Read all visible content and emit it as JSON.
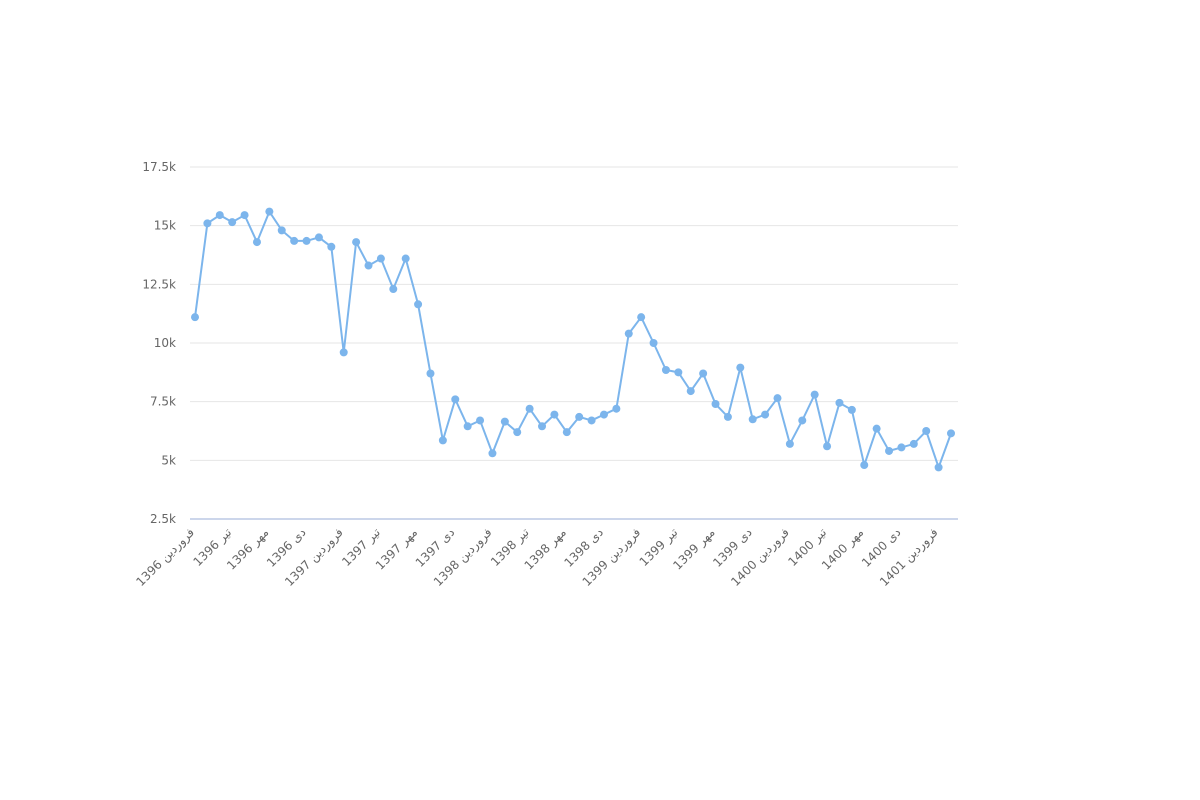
{
  "chart_data": {
    "type": "line",
    "categories": [
      "فروردین 1396",
      null,
      null,
      "تیر 1396",
      null,
      null,
      "مهر 1396",
      null,
      null,
      "دی 1396",
      null,
      null,
      "فروردین 1397",
      null,
      null,
      "تیر 1397",
      null,
      null,
      "مهر 1397",
      null,
      null,
      "دی 1397",
      null,
      null,
      "فروردین 1398",
      null,
      null,
      "تیر 1398",
      null,
      null,
      "مهر 1398",
      null,
      null,
      "دی 1398",
      null,
      null,
      "فروردین 1399",
      null,
      null,
      "تیر 1399",
      null,
      null,
      "مهر 1399",
      null,
      null,
      "دی 1399",
      null,
      null,
      "فروردین 1400",
      null,
      null,
      "تیر 1400",
      null,
      null,
      "مهر 1400",
      null,
      null,
      "دی 1400",
      null,
      null,
      "فروردین 1401",
      null
    ],
    "values": [
      11100,
      15100,
      15450,
      15150,
      15450,
      14300,
      15600,
      14800,
      14350,
      14350,
      14500,
      14100,
      9600,
      14300,
      13300,
      13600,
      12300,
      13600,
      11650,
      8700,
      5850,
      7600,
      6450,
      6700,
      5300,
      6650,
      6200,
      7200,
      6450,
      6950,
      6200,
      6850,
      6700,
      6950,
      7200,
      10400,
      11100,
      10000,
      8850,
      8750,
      7950,
      8700,
      7400,
      6850,
      8950,
      6750,
      6950,
      7650,
      5700,
      6700,
      7800,
      5600,
      7450,
      7150,
      4800,
      6350,
      5400,
      5550,
      5700,
      6250,
      4700,
      6150
    ],
    "color": "#7cb5ec",
    "ylim": [
      2500,
      17500
    ],
    "yticks": [
      {
        "value": 2500,
        "label": "2.5k"
      },
      {
        "value": 5000,
        "label": "5k"
      },
      {
        "value": 7500,
        "label": "7.5k"
      },
      {
        "value": 10000,
        "label": "10k"
      },
      {
        "value": 12500,
        "label": "12.5k"
      },
      {
        "value": 15000,
        "label": "15k"
      },
      {
        "value": 17500,
        "label": "17.5k"
      }
    ],
    "grid": true
  }
}
